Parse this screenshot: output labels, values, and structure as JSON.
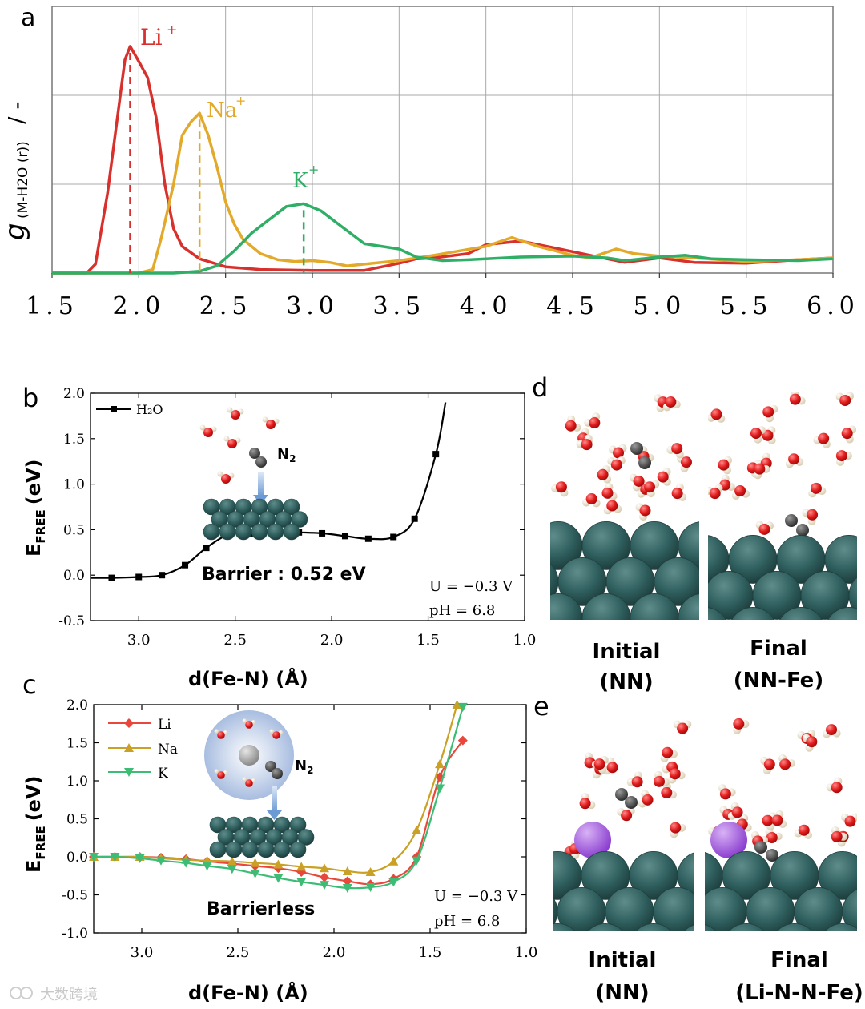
{
  "colors": {
    "li": "#d8302c",
    "na": "#e3a92a",
    "k": "#2fae66",
    "h2o": "#000000",
    "li_c": "#e8473c",
    "na_c": "#caa126",
    "k_c": "#3cbc74",
    "fe": "#2f5f5e",
    "o": "#e11a1a",
    "h": "#eee2c8",
    "n": "#333333",
    "alkali": "#9c52d4"
  },
  "watermark": "大数跨境",
  "panels": {
    "a": {
      "letter": "a",
      "ylabel_main": "g",
      "ylabel_sub": "(M-H2O (r))",
      "ylabel_unit": "/ -"
    },
    "b": {
      "letter": "b",
      "ylabel_main": "E",
      "ylabel_sub": "FREE",
      "ylabel_unit": "(eV)",
      "xlabel": "d(Fe-N) (Å)",
      "barrier": "Barrier : 0.52 eV",
      "potential": "U = −0.3 V",
      "ph": "pH =  6.8",
      "n2_main": "N",
      "n2_sub": "2"
    },
    "c": {
      "letter": "c",
      "ylabel_main": "E",
      "ylabel_sub": "FREE",
      "ylabel_unit": "(eV)",
      "xlabel": "d(Fe-N) (Å)",
      "barrier": "Barrierless",
      "potential": "U = −0.3 V",
      "ph": "pH =  6.8",
      "n2_main": "N",
      "n2_sub": "2"
    },
    "d": {
      "letter": "d",
      "initial_l1": "Initial",
      "initial_l2": "(NN)",
      "final_l1": "Final",
      "final_l2": "(NN-Fe)"
    },
    "e": {
      "letter": "e",
      "initial_l1": "Initial",
      "initial_l2": "(NN)",
      "final_l1": "Final",
      "final_l2": "(Li-N-N-Fe)"
    }
  },
  "chart_data": [
    {
      "id": "a",
      "type": "line",
      "title": "",
      "xlim": [
        1.5,
        6.0
      ],
      "ylim": [
        0,
        3.0
      ],
      "xticks": [
        "1.5",
        "2.0",
        "2.5",
        "3.0",
        "3.5",
        "4.0",
        "4.5",
        "5.0",
        "5.5",
        "6.0"
      ],
      "grid": true,
      "series": [
        {
          "name": "Li",
          "label_sup": "+",
          "peak_x": 1.95,
          "points": [
            [
              1.5,
              0
            ],
            [
              1.7,
              0
            ],
            [
              1.75,
              0.1
            ],
            [
              1.82,
              0.9
            ],
            [
              1.88,
              1.8
            ],
            [
              1.92,
              2.4
            ],
            [
              1.95,
              2.55
            ],
            [
              2.0,
              2.38
            ],
            [
              2.05,
              2.2
            ],
            [
              2.1,
              1.75
            ],
            [
              2.15,
              1.0
            ],
            [
              2.2,
              0.5
            ],
            [
              2.25,
              0.3
            ],
            [
              2.35,
              0.16
            ],
            [
              2.5,
              0.07
            ],
            [
              2.7,
              0.04
            ],
            [
              3.0,
              0.03
            ],
            [
              3.3,
              0.03
            ],
            [
              3.5,
              0.11
            ],
            [
              3.6,
              0.16
            ],
            [
              3.7,
              0.17
            ],
            [
              3.9,
              0.22
            ],
            [
              4.0,
              0.32
            ],
            [
              4.2,
              0.36
            ],
            [
              4.4,
              0.28
            ],
            [
              4.6,
              0.2
            ],
            [
              4.8,
              0.12
            ],
            [
              5.0,
              0.17
            ],
            [
              5.2,
              0.12
            ],
            [
              5.5,
              0.11
            ],
            [
              5.8,
              0.15
            ],
            [
              6.0,
              0.17
            ]
          ]
        },
        {
          "name": "Na",
          "label_sup": "+",
          "peak_x": 2.35,
          "points": [
            [
              1.5,
              0
            ],
            [
              2.0,
              0
            ],
            [
              2.08,
              0.04
            ],
            [
              2.13,
              0.4
            ],
            [
              2.2,
              1.0
            ],
            [
              2.25,
              1.55
            ],
            [
              2.3,
              1.7
            ],
            [
              2.35,
              1.8
            ],
            [
              2.4,
              1.55
            ],
            [
              2.45,
              1.2
            ],
            [
              2.5,
              0.8
            ],
            [
              2.55,
              0.55
            ],
            [
              2.6,
              0.38
            ],
            [
              2.7,
              0.22
            ],
            [
              2.8,
              0.15
            ],
            [
              2.9,
              0.13
            ],
            [
              3.0,
              0.14
            ],
            [
              3.1,
              0.12
            ],
            [
              3.2,
              0.08
            ],
            [
              3.3,
              0.1
            ],
            [
              3.5,
              0.14
            ],
            [
              3.7,
              0.2
            ],
            [
              4.0,
              0.3
            ],
            [
              4.15,
              0.4
            ],
            [
              4.3,
              0.3
            ],
            [
              4.5,
              0.2
            ],
            [
              4.6,
              0.17
            ],
            [
              4.75,
              0.27
            ],
            [
              4.85,
              0.22
            ],
            [
              5.0,
              0.19
            ],
            [
              5.2,
              0.17
            ],
            [
              5.5,
              0.13
            ],
            [
              5.8,
              0.15
            ],
            [
              6.0,
              0.17
            ]
          ]
        },
        {
          "name": "K",
          "label_sup": "+",
          "peak_x": 2.95,
          "points": [
            [
              1.5,
              0
            ],
            [
              2.2,
              0
            ],
            [
              2.35,
              0.02
            ],
            [
              2.45,
              0.08
            ],
            [
              2.55,
              0.25
            ],
            [
              2.65,
              0.45
            ],
            [
              2.75,
              0.6
            ],
            [
              2.85,
              0.75
            ],
            [
              2.95,
              0.78
            ],
            [
              3.05,
              0.7
            ],
            [
              3.15,
              0.55
            ],
            [
              3.3,
              0.33
            ],
            [
              3.5,
              0.27
            ],
            [
              3.6,
              0.18
            ],
            [
              3.75,
              0.14
            ],
            [
              3.9,
              0.15
            ],
            [
              4.2,
              0.18
            ],
            [
              4.5,
              0.19
            ],
            [
              4.7,
              0.17
            ],
            [
              4.8,
              0.14
            ],
            [
              5.0,
              0.18
            ],
            [
              5.15,
              0.2
            ],
            [
              5.3,
              0.16
            ],
            [
              5.5,
              0.15
            ],
            [
              5.8,
              0.14
            ],
            [
              6.0,
              0.16
            ]
          ]
        }
      ]
    },
    {
      "id": "b",
      "type": "line",
      "title": "",
      "xlabel": "d(Fe-N) (Å)",
      "ylabel": "EFREE (eV)",
      "xlim": [
        3.25,
        1.0
      ],
      "ylim": [
        -0.5,
        2.0
      ],
      "xticks": [
        "3.0",
        "2.5",
        "2.0",
        "1.5",
        "1.0"
      ],
      "yticks": [
        "2.0",
        "1.5",
        "1.0",
        "0.5",
        "0.0",
        "-0.5"
      ],
      "legend": "top-left",
      "series": [
        {
          "name": "H₂O",
          "points": [
            [
              3.14,
              -0.03
            ],
            [
              3.0,
              -0.02
            ],
            [
              2.88,
              0.0
            ],
            [
              2.76,
              0.11
            ],
            [
              2.65,
              0.3
            ],
            [
              2.53,
              0.45
            ],
            [
              2.41,
              0.46
            ],
            [
              2.29,
              0.47
            ],
            [
              2.17,
              0.47
            ],
            [
              2.05,
              0.46
            ],
            [
              1.93,
              0.43
            ],
            [
              1.81,
              0.4
            ],
            [
              1.68,
              0.42
            ],
            [
              1.57,
              0.62
            ],
            [
              1.46,
              1.33
            ]
          ]
        }
      ]
    },
    {
      "id": "c",
      "type": "line",
      "title": "",
      "xlabel": "d(Fe-N) (Å)",
      "ylabel": "EFREE (eV)",
      "xlim": [
        3.25,
        1.0
      ],
      "ylim": [
        -1.0,
        2.0
      ],
      "xticks": [
        "3.0",
        "2.5",
        "2.0",
        "1.5",
        "1.0"
      ],
      "yticks": [
        "2.0",
        "1.5",
        "1.0",
        "0.5",
        "0.0",
        "-0.5",
        "-1.0"
      ],
      "legend": "top-left",
      "series": [
        {
          "name": "Li",
          "points": [
            [
              3.25,
              0.0
            ],
            [
              3.14,
              0.0
            ],
            [
              3.01,
              0.0
            ],
            [
              2.9,
              -0.01
            ],
            [
              2.77,
              -0.03
            ],
            [
              2.66,
              -0.06
            ],
            [
              2.53,
              -0.09
            ],
            [
              2.41,
              -0.12
            ],
            [
              2.29,
              -0.15
            ],
            [
              2.17,
              -0.2
            ],
            [
              2.05,
              -0.27
            ],
            [
              1.93,
              -0.32
            ],
            [
              1.81,
              -0.36
            ],
            [
              1.69,
              -0.29
            ],
            [
              1.57,
              0.0
            ],
            [
              1.45,
              1.05
            ],
            [
              1.33,
              1.53
            ]
          ]
        },
        {
          "name": "Na",
          "points": [
            [
              3.25,
              0.0
            ],
            [
              3.14,
              0.0
            ],
            [
              3.01,
              0.0
            ],
            [
              2.9,
              -0.02
            ],
            [
              2.77,
              -0.04
            ],
            [
              2.66,
              -0.05
            ],
            [
              2.53,
              -0.06
            ],
            [
              2.41,
              -0.08
            ],
            [
              2.29,
              -0.1
            ],
            [
              2.17,
              -0.13
            ],
            [
              2.05,
              -0.15
            ],
            [
              1.93,
              -0.19
            ],
            [
              1.81,
              -0.2
            ],
            [
              1.69,
              -0.06
            ],
            [
              1.57,
              0.35
            ],
            [
              1.45,
              1.22
            ],
            [
              1.36,
              2.0
            ]
          ]
        },
        {
          "name": "K",
          "points": [
            [
              3.25,
              0.0
            ],
            [
              3.14,
              0.0
            ],
            [
              3.01,
              -0.02
            ],
            [
              2.9,
              -0.05
            ],
            [
              2.77,
              -0.08
            ],
            [
              2.66,
              -0.12
            ],
            [
              2.53,
              -0.16
            ],
            [
              2.41,
              -0.22
            ],
            [
              2.29,
              -0.28
            ],
            [
              2.17,
              -0.33
            ],
            [
              2.05,
              -0.37
            ],
            [
              1.93,
              -0.41
            ],
            [
              1.81,
              -0.4
            ],
            [
              1.69,
              -0.33
            ],
            [
              1.57,
              -0.05
            ],
            [
              1.45,
              0.9
            ],
            [
              1.33,
              1.97
            ]
          ]
        }
      ]
    }
  ]
}
